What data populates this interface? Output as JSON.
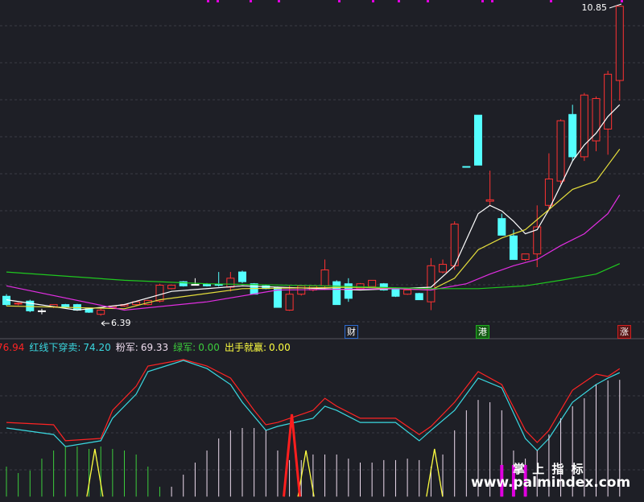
{
  "chart_data": [
    {
      "type": "candlestick",
      "up_color": "#ff3232",
      "down_color": "#54ffff",
      "flat_color": "#ffffff",
      "ylim": [
        6.07,
        10.94
      ],
      "candles": [
        [
          6.67,
          6.7,
          6.53,
          6.55
        ],
        [
          6.56,
          6.58,
          6.54,
          6.57
        ],
        [
          6.6,
          6.62,
          6.44,
          6.46
        ],
        [
          6.46,
          6.49,
          6.41,
          6.46
        ],
        [
          6.52,
          6.55,
          6.5,
          6.55
        ],
        [
          6.55,
          6.56,
          6.5,
          6.51
        ],
        [
          6.55,
          6.56,
          6.46,
          6.47
        ],
        [
          6.49,
          6.5,
          6.43,
          6.44
        ],
        [
          6.41,
          6.49,
          6.39,
          6.47
        ],
        [
          6.51,
          6.53,
          6.5,
          6.53
        ],
        [
          6.53,
          6.56,
          6.52,
          6.55
        ],
        [
          6.55,
          6.59,
          6.54,
          6.59
        ],
        [
          6.55,
          6.62,
          6.54,
          6.61
        ],
        [
          6.6,
          6.85,
          6.58,
          6.83
        ],
        [
          6.78,
          6.84,
          6.77,
          6.83
        ],
        [
          6.88,
          6.89,
          6.81,
          6.82
        ],
        [
          6.84,
          6.93,
          6.83,
          6.84
        ],
        [
          6.84,
          6.86,
          6.81,
          6.82
        ],
        [
          6.84,
          7.02,
          6.81,
          6.83
        ],
        [
          6.8,
          7.02,
          6.74,
          6.93
        ],
        [
          7.02,
          7.04,
          6.86,
          6.88
        ],
        [
          6.85,
          6.86,
          6.7,
          6.7
        ],
        [
          6.82,
          6.84,
          6.77,
          6.78
        ],
        [
          6.8,
          6.81,
          6.51,
          6.51
        ],
        [
          6.47,
          6.82,
          6.46,
          6.7
        ],
        [
          6.7,
          6.83,
          6.68,
          6.82
        ],
        [
          6.76,
          6.83,
          6.74,
          6.82
        ],
        [
          6.82,
          7.2,
          6.76,
          7.05
        ],
        [
          6.88,
          6.9,
          6.55,
          6.55
        ],
        [
          6.85,
          6.93,
          6.59,
          6.64
        ],
        [
          6.78,
          6.86,
          6.77,
          6.85
        ],
        [
          6.81,
          6.9,
          6.8,
          6.9
        ],
        [
          6.85,
          6.86,
          6.75,
          6.76
        ],
        [
          6.78,
          6.8,
          6.66,
          6.67
        ],
        [
          6.7,
          6.77,
          6.69,
          6.76
        ],
        [
          6.71,
          6.72,
          6.62,
          6.62
        ],
        [
          6.59,
          7.22,
          6.47,
          7.11
        ],
        [
          7.02,
          7.2,
          7.0,
          7.13
        ],
        [
          7.11,
          7.75,
          7.05,
          7.71
        ],
        [
          8.54,
          8.54,
          8.53,
          8.53
        ],
        [
          9.28,
          9.28,
          8.56,
          8.56
        ],
        [
          8.04,
          8.48,
          7.98,
          8.06
        ],
        [
          7.79,
          7.86,
          7.55,
          7.55
        ],
        [
          7.54,
          7.63,
          7.2,
          7.2
        ],
        [
          7.2,
          7.28,
          7.18,
          7.28
        ],
        [
          7.28,
          7.98,
          7.09,
          7.67
        ],
        [
          7.98,
          8.73,
          7.9,
          8.36
        ],
        [
          8.33,
          9.22,
          8.29,
          9.2
        ],
        [
          9.29,
          9.43,
          8.62,
          8.68
        ],
        [
          8.68,
          9.6,
          8.62,
          9.57
        ],
        [
          8.91,
          9.55,
          8.76,
          9.52
        ],
        [
          9.08,
          9.92,
          8.71,
          9.87
        ],
        [
          9.78,
          10.85,
          9.49,
          10.85
        ]
      ],
      "series": [
        {
          "color": "#ffffff",
          "x": [
            0,
            6,
            10,
            14,
            20,
            30,
            36,
            38,
            40,
            41,
            42,
            43,
            44,
            45,
            46,
            47,
            48,
            49,
            50,
            51,
            52
          ],
          "values": [
            6.62,
            6.47,
            6.55,
            6.74,
            6.82,
            6.76,
            6.8,
            7.11,
            7.86,
            7.98,
            7.9,
            7.75,
            7.57,
            7.63,
            7.92,
            8.27,
            8.62,
            8.85,
            9.02,
            9.26,
            9.43
          ]
        },
        {
          "color": "#e6df3c",
          "x": [
            0,
            10,
            13,
            20,
            30,
            36,
            38,
            40,
            42,
            44,
            46,
            48,
            50,
            51,
            52
          ],
          "values": [
            6.53,
            6.49,
            6.62,
            6.78,
            6.8,
            6.76,
            6.93,
            7.34,
            7.51,
            7.63,
            7.92,
            8.21,
            8.33,
            8.56,
            8.79
          ]
        },
        {
          "color": "#e22ee2",
          "x": [
            0,
            10,
            17,
            23,
            33,
            36,
            39,
            41,
            43,
            45,
            47,
            49,
            51,
            52
          ],
          "values": [
            6.82,
            6.47,
            6.59,
            6.76,
            6.78,
            6.76,
            6.85,
            6.99,
            7.11,
            7.2,
            7.4,
            7.57,
            7.86,
            8.13
          ]
        },
        {
          "color": "#1fc81f",
          "x": [
            0,
            10,
            17,
            27,
            36,
            40,
            44,
            47,
            50,
            52
          ],
          "values": [
            7.02,
            6.9,
            6.85,
            6.82,
            6.78,
            6.78,
            6.82,
            6.9,
            6.99,
            7.14
          ]
        }
      ]
    },
    {
      "type": "indicator",
      "ylim": [
        -10,
        100
      ],
      "series": [
        {
          "kind": "line",
          "color": "#ff2424",
          "legend_value": "76.94",
          "x": [
            0,
            4,
            5,
            8,
            9,
            11,
            12,
            15,
            17,
            19,
            20,
            21,
            22,
            23,
            26,
            27,
            28,
            30,
            33,
            35,
            36,
            38,
            40,
            42,
            44,
            45,
            46,
            48,
            50,
            51,
            52
          ],
          "values": [
            40.4,
            38.8,
            27.9,
            29.5,
            48.6,
            65.0,
            78.7,
            83.1,
            78.7,
            70.5,
            59.6,
            48.6,
            38.8,
            40.4,
            48.6,
            56.8,
            51.4,
            43.2,
            43.2,
            32.2,
            37.7,
            54.1,
            74.9,
            66.1,
            35.0,
            26.8,
            35.0,
            62.3,
            73.2,
            71.6,
            76.94
          ]
        },
        {
          "kind": "line",
          "color": "#3ad8e0",
          "name": "红线下穿卖:",
          "legend_value": "74.20",
          "x": [
            0,
            4,
            5,
            8,
            9,
            11,
            12,
            15,
            17,
            19,
            20,
            22,
            23,
            26,
            27,
            28,
            30,
            33,
            35,
            36,
            38,
            40,
            42,
            44,
            45,
            46,
            48,
            50,
            51,
            52
          ],
          "values": [
            36.6,
            32.2,
            24.0,
            27.9,
            43.2,
            59.6,
            74.9,
            82.5,
            77.0,
            66.1,
            54.1,
            35.0,
            37.7,
            43.2,
            51.4,
            48.6,
            40.4,
            40.4,
            27.9,
            35.0,
            48.6,
            70.5,
            63.9,
            29.5,
            21.3,
            29.5,
            54.1,
            66.1,
            70.5,
            74.2
          ]
        },
        {
          "kind": "bars",
          "color": "#eedcee",
          "name": "粉军:",
          "legend_value": "69.33",
          "values": [
            null,
            null,
            null,
            null,
            null,
            null,
            null,
            null,
            null,
            null,
            null,
            null,
            null,
            null,
            -3.3,
            4.9,
            13.1,
            21.3,
            29.5,
            35.0,
            36.6,
            36.6,
            35.0,
            21.3,
            14.8,
            14.8,
            18.6,
            18.6,
            18.6,
            15.8,
            13.1,
            13.1,
            14.8,
            14.8,
            15.8,
            14.8,
            10.4,
            18.6,
            35.0,
            48.6,
            55.7,
            54.1,
            48.6,
            21.3,
            15.8,
            21.3,
            32.2,
            43.2,
            51.4,
            56.8,
            66.1,
            68.9,
            69.33
          ]
        },
        {
          "kind": "bars",
          "color": "#3ccc3c",
          "name": "绿军:",
          "legend_value": "0.00",
          "values": [
            10.4,
            6.0,
            7.7,
            15.8,
            21.3,
            24.0,
            24.0,
            22.4,
            24.0,
            22.4,
            21.3,
            18.6,
            10.4,
            -3.3
          ]
        },
        {
          "kind": "triangle",
          "color": "#ffff40",
          "name": "出手就赢:",
          "legend_value": "0.00",
          "x": [
            7.5,
            25.4,
            36.3
          ],
          "values": [
            22.4,
            21.3,
            22.4
          ]
        },
        {
          "kind": "triangle",
          "color": "#ff1e1e",
          "x": [
            24.2
          ],
          "values": [
            45.9
          ]
        },
        {
          "kind": "bars",
          "color": "#e000e0",
          "x": [
            42,
            43,
            44
          ],
          "values": [
            11.5,
            11.5,
            11.5
          ]
        }
      ]
    }
  ],
  "markers": [
    "财",
    "港",
    "涨"
  ],
  "watermark": {
    "title": "掌 上 指 标",
    "url": "www.palmindex.com"
  }
}
